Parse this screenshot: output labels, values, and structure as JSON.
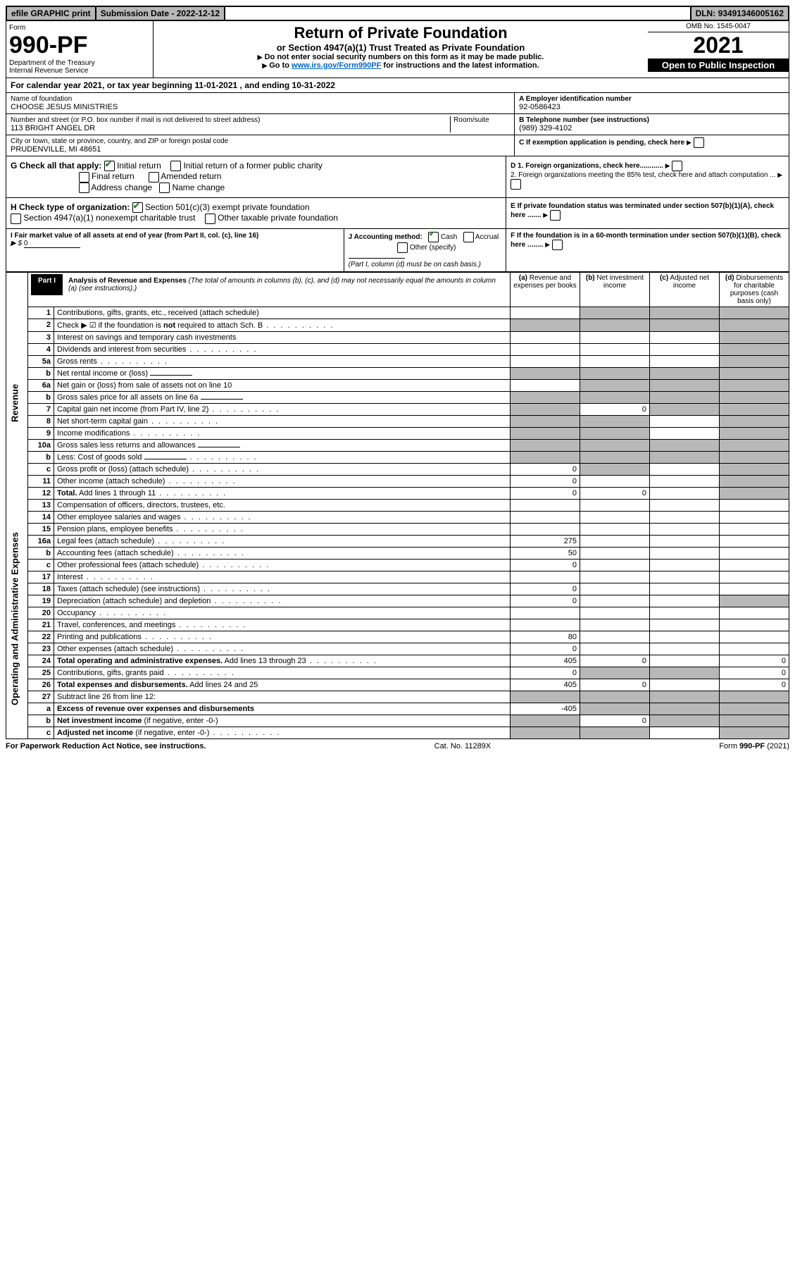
{
  "topbar": {
    "efile": "efile GRAPHIC print",
    "submission_label": "Submission Date - ",
    "submission_date": "2022-12-12",
    "dln_label": "DLN: ",
    "dln": "93491346005162"
  },
  "header": {
    "form_label": "Form",
    "form_number": "990-PF",
    "dept1": "Department of the Treasury",
    "dept2": "Internal Revenue Service",
    "title": "Return of Private Foundation",
    "subtitle": "or Section 4947(a)(1) Trust Treated as Private Foundation",
    "instr1": "Do not enter social security numbers on this form as it may be made public.",
    "instr2_a": "Go to ",
    "instr2_link": "www.irs.gov/Form990PF",
    "instr2_b": " for instructions and the latest information.",
    "omb": "OMB No. 1545-0047",
    "year": "2021",
    "inspection": "Open to Public Inspection"
  },
  "calyear": {
    "text_a": "For calendar year 2021, or tax year beginning ",
    "begin": "11-01-2021",
    "text_b": " , and ending ",
    "end": "10-31-2022"
  },
  "ident": {
    "name_label": "Name of foundation",
    "name": "CHOOSE JESUS MINISTRIES",
    "addr_label": "Number and street (or P.O. box number if mail is not delivered to street address)",
    "room_label": "Room/suite",
    "addr": "113 BRIGHT ANGEL DR",
    "city_label": "City or town, state or province, country, and ZIP or foreign postal code",
    "city": "PRUDENVILLE, MI  48651",
    "ein_label": "A Employer identification number",
    "ein": "92-0586423",
    "phone_label": "B Telephone number (see instructions)",
    "phone": "(989) 329-4102",
    "c_label": "C If exemption application is pending, check here"
  },
  "checks": {
    "g_label": "G Check all that apply:",
    "g_opts": [
      "Initial return",
      "Initial return of a former public charity",
      "Final return",
      "Amended return",
      "Address change",
      "Name change"
    ],
    "h_label": "H Check type of organization:",
    "h_opts": [
      "Section 501(c)(3) exempt private foundation",
      "Section 4947(a)(1) nonexempt charitable trust",
      "Other taxable private foundation"
    ],
    "d1": "D 1. Foreign organizations, check here............",
    "d2": "2. Foreign organizations meeting the 85% test, check here and attach computation ...",
    "e": "E  If private foundation status was terminated under section 507(b)(1)(A), check here .......",
    "i_label": "I Fair market value of all assets at end of year (from Part II, col. (c), line 16)",
    "i_amount_prefix": "▶ $ ",
    "i_amount": "0",
    "j_label": "J Accounting method:",
    "j_cash": "Cash",
    "j_accrual": "Accrual",
    "j_other": "Other (specify)",
    "j_note": "(Part I, column (d) must be on cash basis.)",
    "f": "F  If the foundation is in a 60-month termination under section 507(b)(1)(B), check here ........"
  },
  "part1": {
    "tab": "Part I",
    "title": "Analysis of Revenue and Expenses",
    "desc": " (The total of amounts in columns (b), (c), and (d) may not necessarily equal the amounts in column (a) (see instructions).)",
    "col_a": "Revenue and expenses per books",
    "col_b": "Net investment income",
    "col_c": "Adjusted net income",
    "col_d": "Disbursements for charitable purposes (cash basis only)"
  },
  "side_labels": {
    "revenue": "Revenue",
    "expenses": "Operating and Administrative Expenses"
  },
  "lines": [
    {
      "n": "1",
      "d": "Contributions, gifts, grants, etc., received (attach schedule)",
      "a": "",
      "b": "s",
      "c": "s",
      "dd": "s"
    },
    {
      "n": "2",
      "d": "Check ▶ ☑ if the foundation is <b>not</b> required to attach Sch. B",
      "a": "s",
      "b": "s",
      "c": "s",
      "dd": "s",
      "dots": true
    },
    {
      "n": "3",
      "d": "Interest on savings and temporary cash investments",
      "a": "",
      "b": "",
      "c": "",
      "dd": "s"
    },
    {
      "n": "4",
      "d": "Dividends and interest from securities",
      "a": "",
      "b": "",
      "c": "",
      "dd": "s",
      "dots": true
    },
    {
      "n": "5a",
      "d": "Gross rents",
      "a": "",
      "b": "",
      "c": "",
      "dd": "s",
      "dots": true
    },
    {
      "n": "b",
      "d": "Net rental income or (loss)",
      "a": "s",
      "b": "s",
      "c": "s",
      "dd": "s",
      "inline": true
    },
    {
      "n": "6a",
      "d": "Net gain or (loss) from sale of assets not on line 10",
      "a": "",
      "b": "s",
      "c": "s",
      "dd": "s"
    },
    {
      "n": "b",
      "d": "Gross sales price for all assets on line 6a",
      "a": "s",
      "b": "s",
      "c": "s",
      "dd": "s",
      "inline": true
    },
    {
      "n": "7",
      "d": "Capital gain net income (from Part IV, line 2)",
      "a": "s",
      "b": "0",
      "c": "s",
      "dd": "s",
      "dots": true
    },
    {
      "n": "8",
      "d": "Net short-term capital gain",
      "a": "s",
      "b": "s",
      "c": "",
      "dd": "s",
      "dots": true
    },
    {
      "n": "9",
      "d": "Income modifications",
      "a": "s",
      "b": "s",
      "c": "",
      "dd": "s",
      "dots": true
    },
    {
      "n": "10a",
      "d": "Gross sales less returns and allowances",
      "a": "s",
      "b": "s",
      "c": "s",
      "dd": "s",
      "inline": true
    },
    {
      "n": "b",
      "d": "Less: Cost of goods sold",
      "a": "s",
      "b": "s",
      "c": "s",
      "dd": "s",
      "inline": true,
      "dots": true
    },
    {
      "n": "c",
      "d": "Gross profit or (loss) (attach schedule)",
      "a": "0",
      "b": "s",
      "c": "",
      "dd": "s",
      "dots": true
    },
    {
      "n": "11",
      "d": "Other income (attach schedule)",
      "a": "0",
      "b": "",
      "c": "",
      "dd": "s",
      "dots": true
    },
    {
      "n": "12",
      "d": "<b>Total.</b> Add lines 1 through 11",
      "a": "0",
      "b": "0",
      "c": "",
      "dd": "s",
      "dots": true
    }
  ],
  "exp_lines": [
    {
      "n": "13",
      "d": "Compensation of officers, directors, trustees, etc.",
      "a": "",
      "b": "",
      "c": "",
      "dd": ""
    },
    {
      "n": "14",
      "d": "Other employee salaries and wages",
      "a": "",
      "b": "",
      "c": "",
      "dd": "",
      "dots": true
    },
    {
      "n": "15",
      "d": "Pension plans, employee benefits",
      "a": "",
      "b": "",
      "c": "",
      "dd": "",
      "dots": true
    },
    {
      "n": "16a",
      "d": "Legal fees (attach schedule)",
      "a": "275",
      "b": "",
      "c": "",
      "dd": "",
      "dots": true
    },
    {
      "n": "b",
      "d": "Accounting fees (attach schedule)",
      "a": "50",
      "b": "",
      "c": "",
      "dd": "",
      "dots": true
    },
    {
      "n": "c",
      "d": "Other professional fees (attach schedule)",
      "a": "0",
      "b": "",
      "c": "",
      "dd": "",
      "dots": true
    },
    {
      "n": "17",
      "d": "Interest",
      "a": "",
      "b": "",
      "c": "",
      "dd": "",
      "dots": true
    },
    {
      "n": "18",
      "d": "Taxes (attach schedule) (see instructions)",
      "a": "0",
      "b": "",
      "c": "",
      "dd": "",
      "dots": true
    },
    {
      "n": "19",
      "d": "Depreciation (attach schedule) and depletion",
      "a": "0",
      "b": "",
      "c": "",
      "dd": "s",
      "dots": true
    },
    {
      "n": "20",
      "d": "Occupancy",
      "a": "",
      "b": "",
      "c": "",
      "dd": "",
      "dots": true
    },
    {
      "n": "21",
      "d": "Travel, conferences, and meetings",
      "a": "",
      "b": "",
      "c": "",
      "dd": "",
      "dots": true
    },
    {
      "n": "22",
      "d": "Printing and publications",
      "a": "80",
      "b": "",
      "c": "",
      "dd": "",
      "dots": true
    },
    {
      "n": "23",
      "d": "Other expenses (attach schedule)",
      "a": "0",
      "b": "",
      "c": "",
      "dd": "",
      "dots": true
    },
    {
      "n": "24",
      "d": "<b>Total operating and administrative expenses.</b> Add lines 13 through 23",
      "a": "405",
      "b": "0",
      "c": "",
      "dd": "0",
      "dots": true
    },
    {
      "n": "25",
      "d": "Contributions, gifts, grants paid",
      "a": "0",
      "b": "s",
      "c": "s",
      "dd": "0",
      "dots": true
    },
    {
      "n": "26",
      "d": "<b>Total expenses and disbursements.</b> Add lines 24 and 25",
      "a": "405",
      "b": "0",
      "c": "",
      "dd": "0"
    },
    {
      "n": "27",
      "d": "Subtract line 26 from line 12:",
      "a": "s",
      "b": "s",
      "c": "s",
      "dd": "s"
    },
    {
      "n": "a",
      "d": "<b>Excess of revenue over expenses and disbursements</b>",
      "a": "-405",
      "b": "s",
      "c": "s",
      "dd": "s"
    },
    {
      "n": "b",
      "d": "<b>Net investment income</b> (if negative, enter -0-)",
      "a": "s",
      "b": "0",
      "c": "s",
      "dd": "s"
    },
    {
      "n": "c",
      "d": "<b>Adjusted net income</b> (if negative, enter -0-)",
      "a": "s",
      "b": "s",
      "c": "",
      "dd": "s",
      "dots": true
    }
  ],
  "footer": {
    "left": "For Paperwork Reduction Act Notice, see instructions.",
    "mid": "Cat. No. 11289X",
    "right": "Form 990-PF (2021)"
  }
}
